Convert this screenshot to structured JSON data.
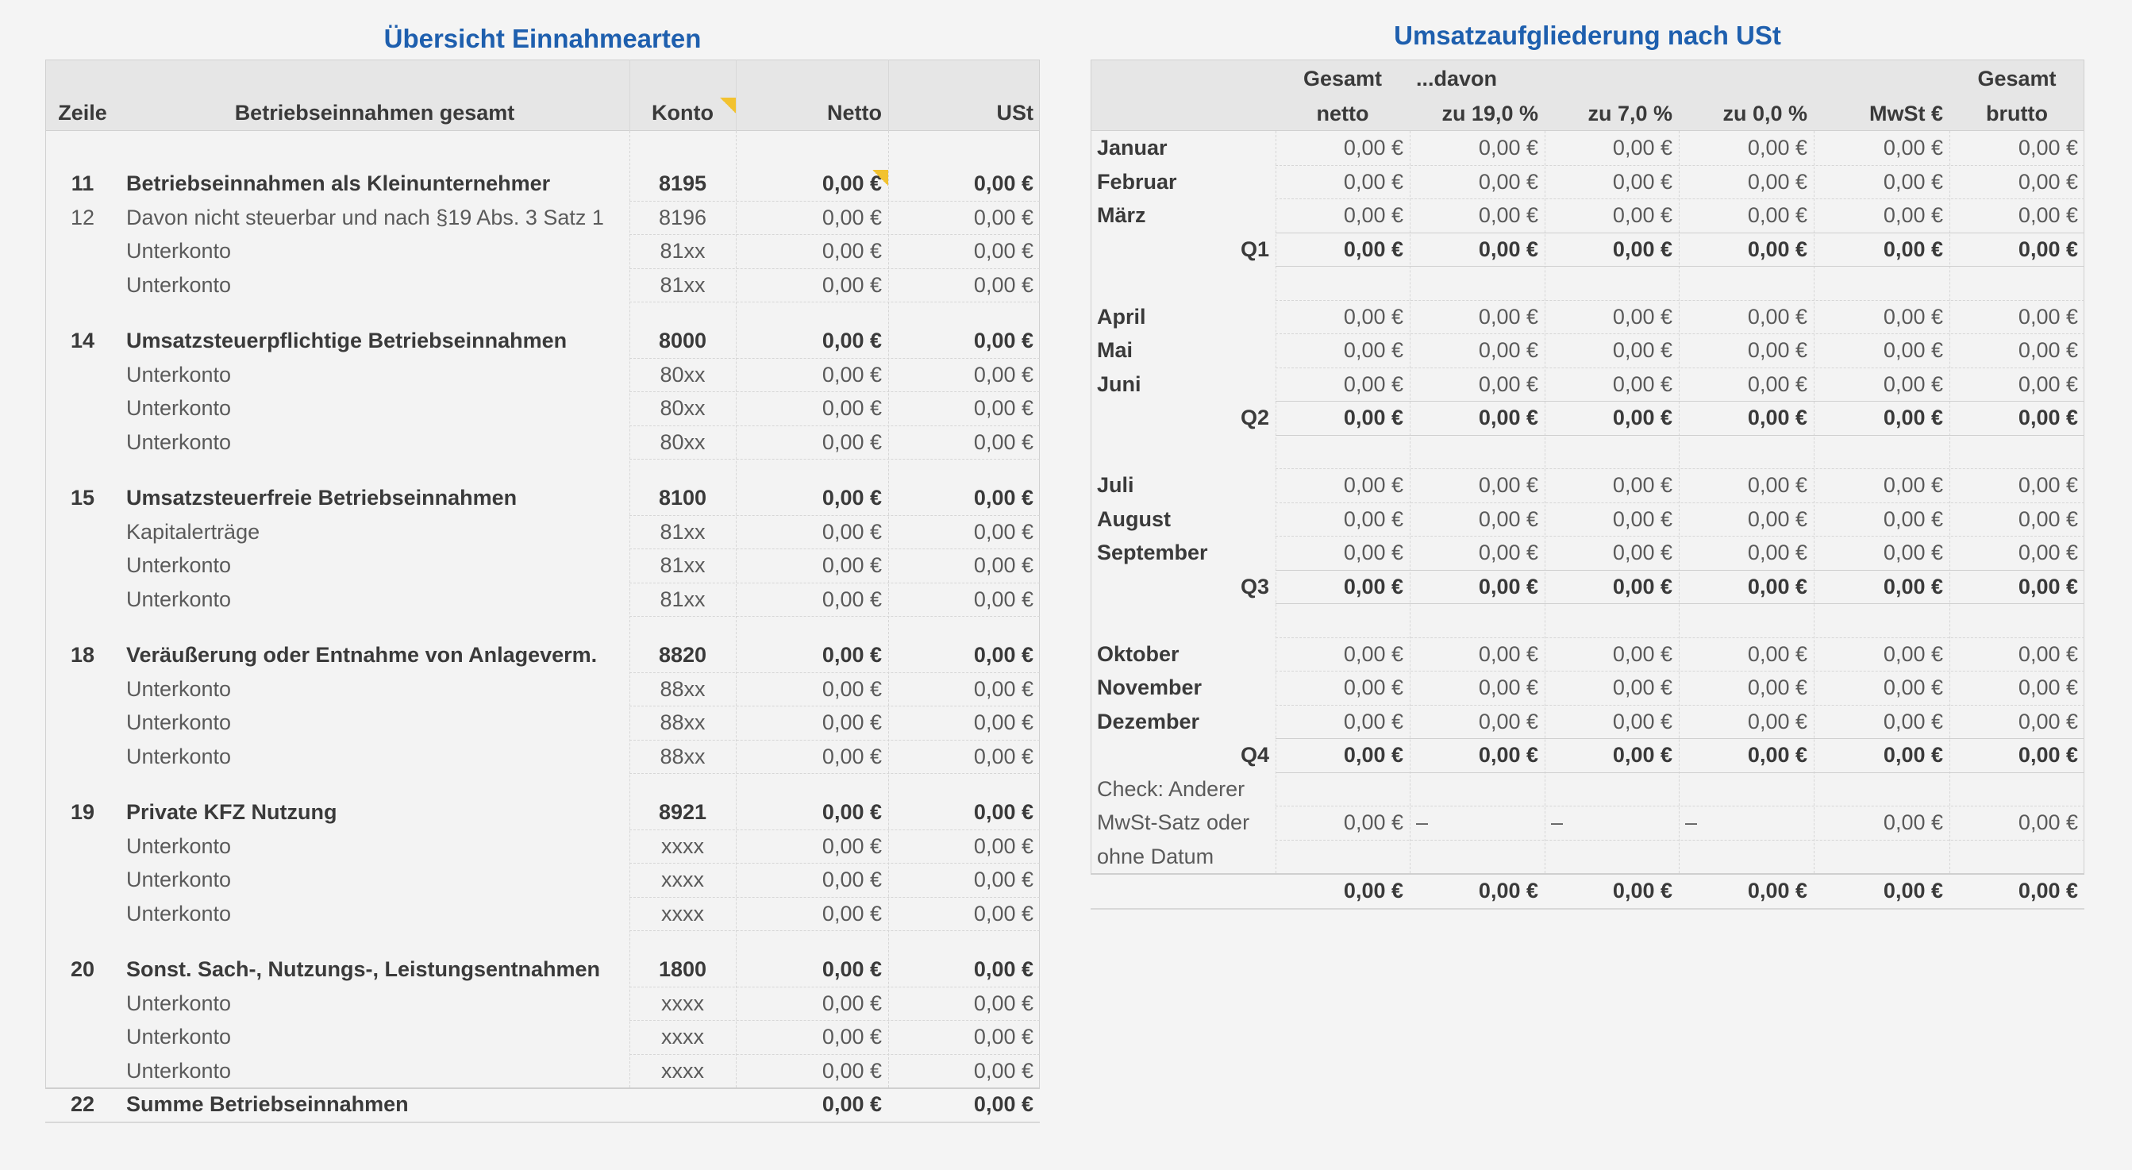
{
  "left": {
    "title": "Übersicht Einnahmearten",
    "headers": [
      "Zeile",
      "Betriebseinnahmen gesamt",
      "Konto",
      "Netto",
      "USt"
    ],
    "groups": [
      [
        {
          "zeile": "11",
          "label": "Betriebseinnahmen als Kleinunternehmer",
          "konto": "8195",
          "netto": "0,00 €",
          "ust": "0,00 €",
          "bold": true
        },
        {
          "zeile": "12",
          "label": "Davon nicht steuerbar und nach §19 Abs. 3 Satz 1",
          "konto": "8196",
          "netto": "0,00 €",
          "ust": "0,00 €",
          "bold": false
        },
        {
          "label": "Unterkonto",
          "konto": "81xx",
          "netto": "0,00 €",
          "ust": "0,00 €",
          "bold": false
        },
        {
          "label": "Unterkonto",
          "konto": "81xx",
          "netto": "0,00 €",
          "ust": "0,00 €",
          "bold": false
        }
      ],
      [
        {
          "zeile": "14",
          "label": "Umsatzsteuerpflichtige Betriebseinnahmen",
          "konto": "8000",
          "netto": "0,00 €",
          "ust": "0,00 €",
          "bold": true
        },
        {
          "label": "Unterkonto",
          "konto": "80xx",
          "netto": "0,00 €",
          "ust": "0,00 €",
          "bold": false
        },
        {
          "label": "Unterkonto",
          "konto": "80xx",
          "netto": "0,00 €",
          "ust": "0,00 €",
          "bold": false
        },
        {
          "label": "Unterkonto",
          "konto": "80xx",
          "netto": "0,00 €",
          "ust": "0,00 €",
          "bold": false
        }
      ],
      [
        {
          "zeile": "15",
          "label": "Umsatzsteuerfreie Betriebseinnahmen",
          "konto": "8100",
          "netto": "0,00 €",
          "ust": "0,00 €",
          "bold": true
        },
        {
          "label": "Kapitalerträge",
          "konto": "81xx",
          "netto": "0,00 €",
          "ust": "0,00 €",
          "bold": false
        },
        {
          "label": "Unterkonto",
          "konto": "81xx",
          "netto": "0,00 €",
          "ust": "0,00 €",
          "bold": false
        },
        {
          "label": "Unterkonto",
          "konto": "81xx",
          "netto": "0,00 €",
          "ust": "0,00 €",
          "bold": false
        }
      ],
      [
        {
          "zeile": "18",
          "label": "Veräußerung oder Entnahme von Anlageverm.",
          "konto": "8820",
          "netto": "0,00 €",
          "ust": "0,00 €",
          "bold": true
        },
        {
          "label": "Unterkonto",
          "konto": "88xx",
          "netto": "0,00 €",
          "ust": "0,00 €",
          "bold": false
        },
        {
          "label": "Unterkonto",
          "konto": "88xx",
          "netto": "0,00 €",
          "ust": "0,00 €",
          "bold": false
        },
        {
          "label": "Unterkonto",
          "konto": "88xx",
          "netto": "0,00 €",
          "ust": "0,00 €",
          "bold": false
        }
      ],
      [
        {
          "zeile": "19",
          "label": "Private KFZ Nutzung",
          "konto": "8921",
          "netto": "0,00 €",
          "ust": "0,00 €",
          "bold": true
        },
        {
          "label": "Unterkonto",
          "konto": "xxxx",
          "netto": "0,00 €",
          "ust": "0,00 €",
          "bold": false
        },
        {
          "label": "Unterkonto",
          "konto": "xxxx",
          "netto": "0,00 €",
          "ust": "0,00 €",
          "bold": false
        },
        {
          "label": "Unterkonto",
          "konto": "xxxx",
          "netto": "0,00 €",
          "ust": "0,00 €",
          "bold": false
        }
      ],
      [
        {
          "zeile": "20",
          "label": "Sonst. Sach-, Nutzungs-, Leistungsentnahmen",
          "konto": "1800",
          "netto": "0,00 €",
          "ust": "0,00 €",
          "bold": true
        },
        {
          "label": "Unterkonto",
          "konto": "xxxx",
          "netto": "0,00 €",
          "ust": "0,00 €",
          "bold": false
        },
        {
          "label": "Unterkonto",
          "konto": "xxxx",
          "netto": "0,00 €",
          "ust": "0,00 €",
          "bold": false
        },
        {
          "label": "Unterkonto",
          "konto": "xxxx",
          "netto": "0,00 €",
          "ust": "0,00 €",
          "bold": false
        }
      ]
    ],
    "total": {
      "zeile": "22",
      "label": "Summe Betriebseinnahmen",
      "netto": "0,00 €",
      "ust": "0,00 €"
    }
  },
  "right": {
    "title": "Umsatzaufgliederung nach USt",
    "header_top": {
      "gesamt": "Gesamt",
      "davon": "...davon",
      "brutto": "Gesamt"
    },
    "headers": [
      "netto",
      "zu 19,0 %",
      "zu 7,0 %",
      "zu 0,0 %",
      "MwSt €",
      "brutto"
    ],
    "quarters": [
      {
        "months": [
          {
            "name": "Januar",
            "values": [
              "0,00 €",
              "0,00 €",
              "0,00 €",
              "0,00 €",
              "0,00 €",
              "0,00 €"
            ]
          },
          {
            "name": "Februar",
            "values": [
              "0,00 €",
              "0,00 €",
              "0,00 €",
              "0,00 €",
              "0,00 €",
              "0,00 €"
            ]
          },
          {
            "name": "März",
            "values": [
              "0,00 €",
              "0,00 €",
              "0,00 €",
              "0,00 €",
              "0,00 €",
              "0,00 €"
            ]
          }
        ],
        "total": {
          "label": "Q1",
          "values": [
            "0,00 €",
            "0,00 €",
            "0,00 €",
            "0,00 €",
            "0,00 €",
            "0,00 €"
          ]
        }
      },
      {
        "months": [
          {
            "name": "April",
            "values": [
              "0,00 €",
              "0,00 €",
              "0,00 €",
              "0,00 €",
              "0,00 €",
              "0,00 €"
            ]
          },
          {
            "name": "Mai",
            "values": [
              "0,00 €",
              "0,00 €",
              "0,00 €",
              "0,00 €",
              "0,00 €",
              "0,00 €"
            ]
          },
          {
            "name": "Juni",
            "values": [
              "0,00 €",
              "0,00 €",
              "0,00 €",
              "0,00 €",
              "0,00 €",
              "0,00 €"
            ]
          }
        ],
        "total": {
          "label": "Q2",
          "values": [
            "0,00 €",
            "0,00 €",
            "0,00 €",
            "0,00 €",
            "0,00 €",
            "0,00 €"
          ]
        }
      },
      {
        "months": [
          {
            "name": "Juli",
            "values": [
              "0,00 €",
              "0,00 €",
              "0,00 €",
              "0,00 €",
              "0,00 €",
              "0,00 €"
            ]
          },
          {
            "name": "August",
            "values": [
              "0,00 €",
              "0,00 €",
              "0,00 €",
              "0,00 €",
              "0,00 €",
              "0,00 €"
            ]
          },
          {
            "name": "September",
            "values": [
              "0,00 €",
              "0,00 €",
              "0,00 €",
              "0,00 €",
              "0,00 €",
              "0,00 €"
            ]
          }
        ],
        "total": {
          "label": "Q3",
          "values": [
            "0,00 €",
            "0,00 €",
            "0,00 €",
            "0,00 €",
            "0,00 €",
            "0,00 €"
          ]
        }
      },
      {
        "months": [
          {
            "name": "Oktober",
            "values": [
              "0,00 €",
              "0,00 €",
              "0,00 €",
              "0,00 €",
              "0,00 €",
              "0,00 €"
            ]
          },
          {
            "name": "November",
            "values": [
              "0,00 €",
              "0,00 €",
              "0,00 €",
              "0,00 €",
              "0,00 €",
              "0,00 €"
            ]
          },
          {
            "name": "Dezember",
            "values": [
              "0,00 €",
              "0,00 €",
              "0,00 €",
              "0,00 €",
              "0,00 €",
              "0,00 €"
            ]
          }
        ],
        "total": {
          "label": "Q4",
          "values": [
            "0,00 €",
            "0,00 €",
            "0,00 €",
            "0,00 €",
            "0,00 €",
            "0,00 €"
          ]
        }
      }
    ],
    "check": {
      "lines": [
        "Check: Anderer",
        "MwSt-Satz oder",
        "ohne Datum"
      ],
      "values": [
        "0,00 €",
        "–",
        "–",
        "–",
        "0,00 €",
        "0,00 €"
      ]
    },
    "total": {
      "values": [
        "0,00 €",
        "0,00 €",
        "0,00 €",
        "0,00 €",
        "0,00 €",
        "0,00 €"
      ]
    }
  }
}
